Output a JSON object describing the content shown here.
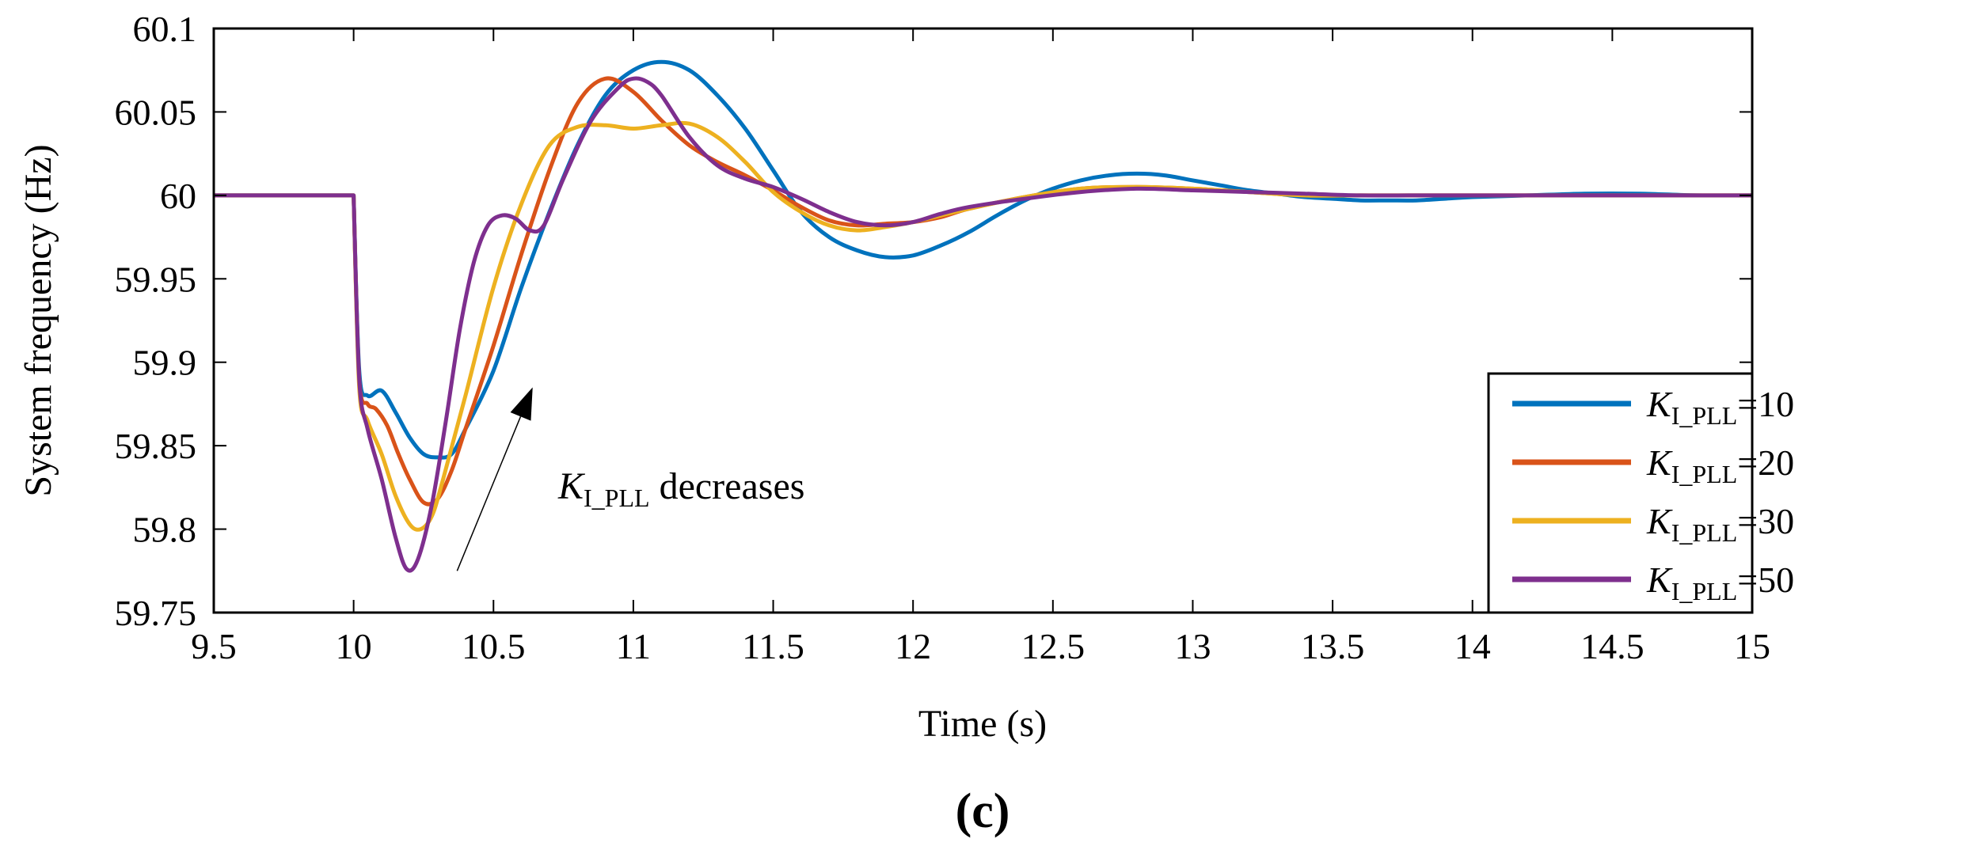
{
  "chart_data": {
    "type": "line",
    "title": "",
    "xlabel": "Time (s)",
    "ylabel": "System frequency (Hz)",
    "xlim": [
      9.5,
      15
    ],
    "ylim": [
      59.75,
      60.1
    ],
    "x_ticks": [
      "9.5",
      "10",
      "10.5",
      "11",
      "11.5",
      "12",
      "12.5",
      "13",
      "13.5",
      "14",
      "14.5",
      "15"
    ],
    "y_ticks": [
      "59.75",
      "59.8",
      "59.85",
      "59.9",
      "59.95",
      "60",
      "60.05",
      "60.1"
    ],
    "grid": false,
    "legend_position": "bottom-right",
    "series": [
      {
        "name": "K_I_PLL=10",
        "legend_main": "K",
        "legend_sub": "I_PLL",
        "legend_tail": "=10",
        "color": "#0072BD",
        "x": [
          9.5,
          10.0,
          10.02,
          10.05,
          10.1,
          10.15,
          10.2,
          10.25,
          10.3,
          10.35,
          10.4,
          10.5,
          10.6,
          10.7,
          10.8,
          10.9,
          11.0,
          11.1,
          11.2,
          11.3,
          11.4,
          11.5,
          11.6,
          11.7,
          11.8,
          11.9,
          12.0,
          12.1,
          12.2,
          12.3,
          12.4,
          12.5,
          12.6,
          12.7,
          12.8,
          12.9,
          13.0,
          13.1,
          13.2,
          13.3,
          13.4,
          13.5,
          13.6,
          13.7,
          13.8,
          13.9,
          14.0,
          14.2,
          14.4,
          14.6,
          14.8,
          15.0
        ],
        "y": [
          60.0,
          60.0,
          59.895,
          59.88,
          59.883,
          59.87,
          59.855,
          59.845,
          59.843,
          59.845,
          59.86,
          59.895,
          59.945,
          59.99,
          60.03,
          60.06,
          60.075,
          60.08,
          60.075,
          60.06,
          60.04,
          60.015,
          59.99,
          59.975,
          59.967,
          59.963,
          59.964,
          59.97,
          59.978,
          59.988,
          59.997,
          60.004,
          60.009,
          60.012,
          60.013,
          60.012,
          60.009,
          60.006,
          60.003,
          60.001,
          59.999,
          59.998,
          59.997,
          59.997,
          59.997,
          59.998,
          59.999,
          60.0,
          60.001,
          60.001,
          60.0,
          60.0
        ]
      },
      {
        "name": "K_I_PLL=20",
        "legend_main": "K",
        "legend_sub": "I_PLL",
        "legend_tail": "=20",
        "color": "#D95319",
        "x": [
          9.5,
          10.0,
          10.02,
          10.05,
          10.08,
          10.12,
          10.16,
          10.2,
          10.25,
          10.3,
          10.35,
          10.4,
          10.5,
          10.6,
          10.7,
          10.8,
          10.9,
          11.0,
          11.1,
          11.2,
          11.3,
          11.4,
          11.5,
          11.6,
          11.7,
          11.8,
          11.9,
          12.0,
          12.1,
          12.2,
          12.4,
          12.6,
          12.8,
          13.0,
          13.2,
          13.4,
          13.6,
          13.8,
          14.0,
          14.5,
          15.0
        ],
        "y": [
          60.0,
          60.0,
          59.89,
          59.875,
          59.872,
          59.862,
          59.845,
          59.83,
          59.816,
          59.818,
          59.835,
          59.86,
          59.91,
          59.965,
          60.015,
          60.055,
          60.07,
          60.062,
          60.045,
          60.03,
          60.02,
          60.012,
          60.003,
          59.993,
          59.985,
          59.982,
          59.983,
          59.984,
          59.987,
          59.992,
          59.999,
          60.004,
          60.005,
          60.004,
          60.002,
          60.0,
          60.0,
          60.0,
          60.0,
          60.0,
          60.0
        ]
      },
      {
        "name": "K_I_PLL=30",
        "legend_main": "K",
        "legend_sub": "I_PLL",
        "legend_tail": "=30",
        "color": "#EDB120",
        "x": [
          9.5,
          10.0,
          10.02,
          10.05,
          10.1,
          10.15,
          10.2,
          10.24,
          10.28,
          10.32,
          10.4,
          10.5,
          10.6,
          10.7,
          10.8,
          10.9,
          11.0,
          11.1,
          11.2,
          11.3,
          11.4,
          11.5,
          11.6,
          11.7,
          11.8,
          11.9,
          12.0,
          12.1,
          12.2,
          12.4,
          12.6,
          12.8,
          13.0,
          13.2,
          13.4,
          13.6,
          13.8,
          14.0,
          14.5,
          15.0
        ],
        "y": [
          60.0,
          60.0,
          59.885,
          59.865,
          59.845,
          59.82,
          59.803,
          59.8,
          59.808,
          59.83,
          59.88,
          59.945,
          59.995,
          60.03,
          60.041,
          60.042,
          60.04,
          60.042,
          60.043,
          60.035,
          60.02,
          60.002,
          59.99,
          59.982,
          59.979,
          59.981,
          59.984,
          59.988,
          59.992,
          59.999,
          60.004,
          60.005,
          60.004,
          60.002,
          60.0,
          60.0,
          60.0,
          60.0,
          60.0,
          60.0
        ]
      },
      {
        "name": "K_I_PLL=50",
        "legend_main": "K",
        "legend_sub": "I_PLL",
        "legend_tail": "=50",
        "color": "#7E2F8E",
        "x": [
          9.5,
          10.0,
          10.02,
          10.05,
          10.1,
          10.15,
          10.19,
          10.23,
          10.28,
          10.33,
          10.38,
          10.43,
          10.48,
          10.53,
          10.58,
          10.63,
          10.68,
          10.75,
          10.85,
          10.95,
          11.0,
          11.05,
          11.1,
          11.2,
          11.3,
          11.4,
          11.5,
          11.6,
          11.7,
          11.8,
          11.9,
          12.0,
          12.1,
          12.2,
          12.4,
          12.6,
          12.8,
          13.0,
          13.2,
          13.4,
          13.6,
          13.8,
          14.0,
          14.5,
          15.0
        ],
        "y": [
          60.0,
          60.0,
          59.89,
          59.86,
          59.83,
          59.795,
          59.776,
          59.782,
          59.815,
          59.865,
          59.92,
          59.96,
          59.982,
          59.988,
          59.986,
          59.979,
          59.982,
          60.01,
          60.045,
          60.065,
          60.07,
          60.068,
          60.06,
          60.035,
          60.018,
          60.01,
          60.005,
          59.998,
          59.99,
          59.984,
          59.982,
          59.984,
          59.989,
          59.993,
          59.998,
          60.002,
          60.004,
          60.003,
          60.002,
          60.001,
          60.0,
          60.0,
          60.0,
          60.0,
          60.0
        ]
      }
    ],
    "annotations": [
      {
        "text_main": "K",
        "text_sub": "I_PLL",
        "text_tail": " decreases",
        "arrow_from": [
          10.37,
          59.775
        ],
        "arrow_to": [
          10.64,
          59.885
        ]
      }
    ]
  },
  "panel_label": "(c)"
}
